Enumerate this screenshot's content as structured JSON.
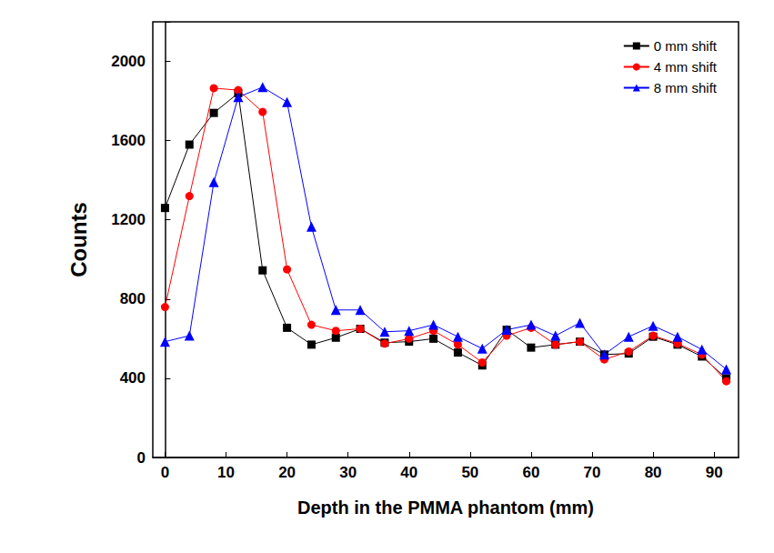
{
  "chart_data": {
    "type": "line",
    "x_label": "Depth in the PMMA phantom (mm)",
    "y_label": "Counts",
    "x": [
      0,
      4,
      8,
      12,
      16,
      20,
      24,
      28,
      32,
      36,
      40,
      44,
      48,
      52,
      56,
      60,
      64,
      68,
      72,
      76,
      80,
      84,
      88,
      92
    ],
    "series": [
      {
        "name": "0 mm shift",
        "color": "#000000",
        "marker": "square",
        "values": [
          1260,
          1580,
          1740,
          1840,
          945,
          655,
          570,
          605,
          650,
          580,
          585,
          600,
          530,
          465,
          645,
          555,
          570,
          585,
          520,
          525,
          610,
          570,
          510,
          400
        ]
      },
      {
        "name": "4 mm shift",
        "color": "#ff0000",
        "marker": "circle",
        "values": [
          760,
          1320,
          1865,
          1855,
          1745,
          950,
          670,
          640,
          650,
          575,
          600,
          640,
          570,
          480,
          615,
          655,
          570,
          585,
          495,
          535,
          615,
          575,
          520,
          385
        ]
      },
      {
        "name": "8 mm shift",
        "color": "#0000ff",
        "marker": "triangle",
        "values": [
          585,
          615,
          1390,
          1820,
          1870,
          1795,
          1165,
          745,
          745,
          635,
          640,
          670,
          610,
          550,
          645,
          670,
          615,
          680,
          520,
          610,
          665,
          610,
          545,
          445
        ]
      }
    ],
    "xlim": [
      -2,
      94
    ],
    "xticks": [
      0,
      10,
      20,
      30,
      40,
      50,
      60,
      70,
      80,
      90
    ],
    "ylim": [
      0,
      2200
    ],
    "yticks": [
      0,
      400,
      800,
      1200,
      1600,
      2000
    ],
    "grid": false,
    "legend": "upper right"
  }
}
